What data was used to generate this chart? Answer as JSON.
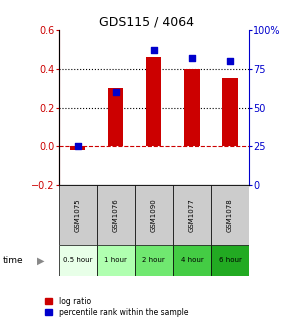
{
  "title": "GDS115 / 4064",
  "categories": [
    "GSM1075",
    "GSM1076",
    "GSM1090",
    "GSM1077",
    "GSM1078"
  ],
  "time_labels": [
    "0.5 hour",
    "1 hour",
    "2 hour",
    "4 hour",
    "6 hour"
  ],
  "log_ratio": [
    -0.022,
    0.3,
    0.46,
    0.4,
    0.355
  ],
  "percentile_rank": [
    25,
    60,
    87,
    82,
    80
  ],
  "bar_color": "#cc0000",
  "dot_color": "#0000cc",
  "left_ylim": [
    -0.2,
    0.6
  ],
  "right_ylim": [
    0,
    100
  ],
  "left_yticks": [
    -0.2,
    0.0,
    0.2,
    0.4,
    0.6
  ],
  "right_yticks": [
    0,
    25,
    50,
    75,
    100
  ],
  "right_yticklabels": [
    "0",
    "25",
    "50",
    "75",
    "100%"
  ],
  "dotted_lines": [
    0.2,
    0.4
  ],
  "zero_line": 0.0,
  "time_colors": [
    "#e8ffe8",
    "#b0ffb0",
    "#70e870",
    "#44cc44",
    "#22aa22"
  ],
  "gsm_bg_color": "#cccccc",
  "bar_width": 0.4
}
